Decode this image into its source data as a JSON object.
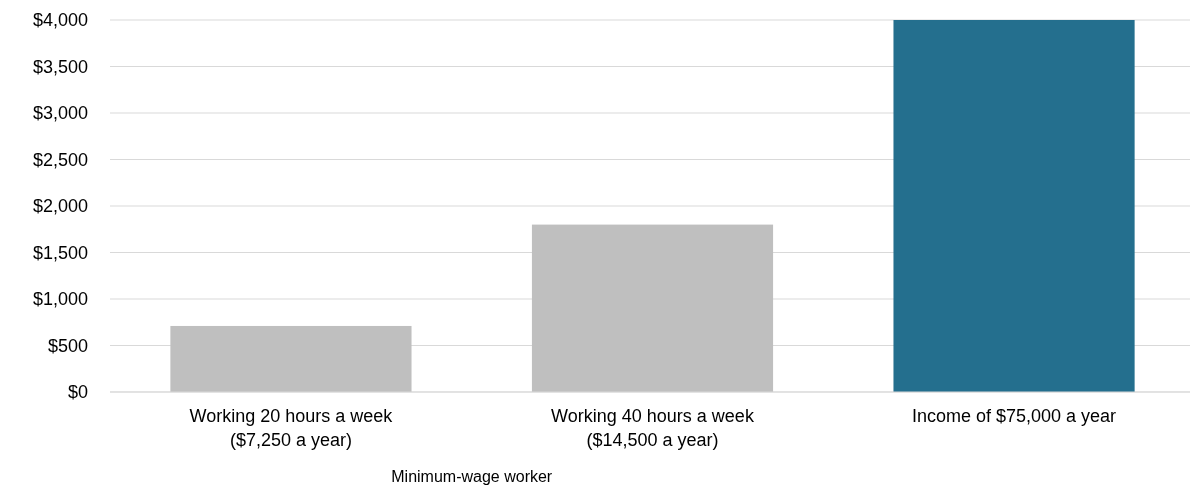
{
  "chart_data": {
    "type": "bar",
    "categories": [
      "Working 20 hours a week\n($7,250 a year)",
      "Working 40 hours a week\n($14,500 a year)",
      "Income of $75,000 a year"
    ],
    "values": [
      710,
      1800,
      4000
    ],
    "colors": [
      "#bfbfbf",
      "#bfbfbf",
      "#246f8e"
    ],
    "ylim": [
      0,
      4000
    ],
    "yticks": [
      {
        "value": 0,
        "label": "$0"
      },
      {
        "value": 500,
        "label": "$500"
      },
      {
        "value": 1000,
        "label": "$1,000"
      },
      {
        "value": 1500,
        "label": "$1,500"
      },
      {
        "value": 2000,
        "label": "$2,000"
      },
      {
        "value": 2500,
        "label": "$2,500"
      },
      {
        "value": 3000,
        "label": "$3,000"
      },
      {
        "value": 3500,
        "label": "$3,500"
      },
      {
        "value": 4000,
        "label": "$4,000"
      }
    ],
    "grid": "y",
    "annotations": [
      "Minimum-wage worker"
    ]
  }
}
